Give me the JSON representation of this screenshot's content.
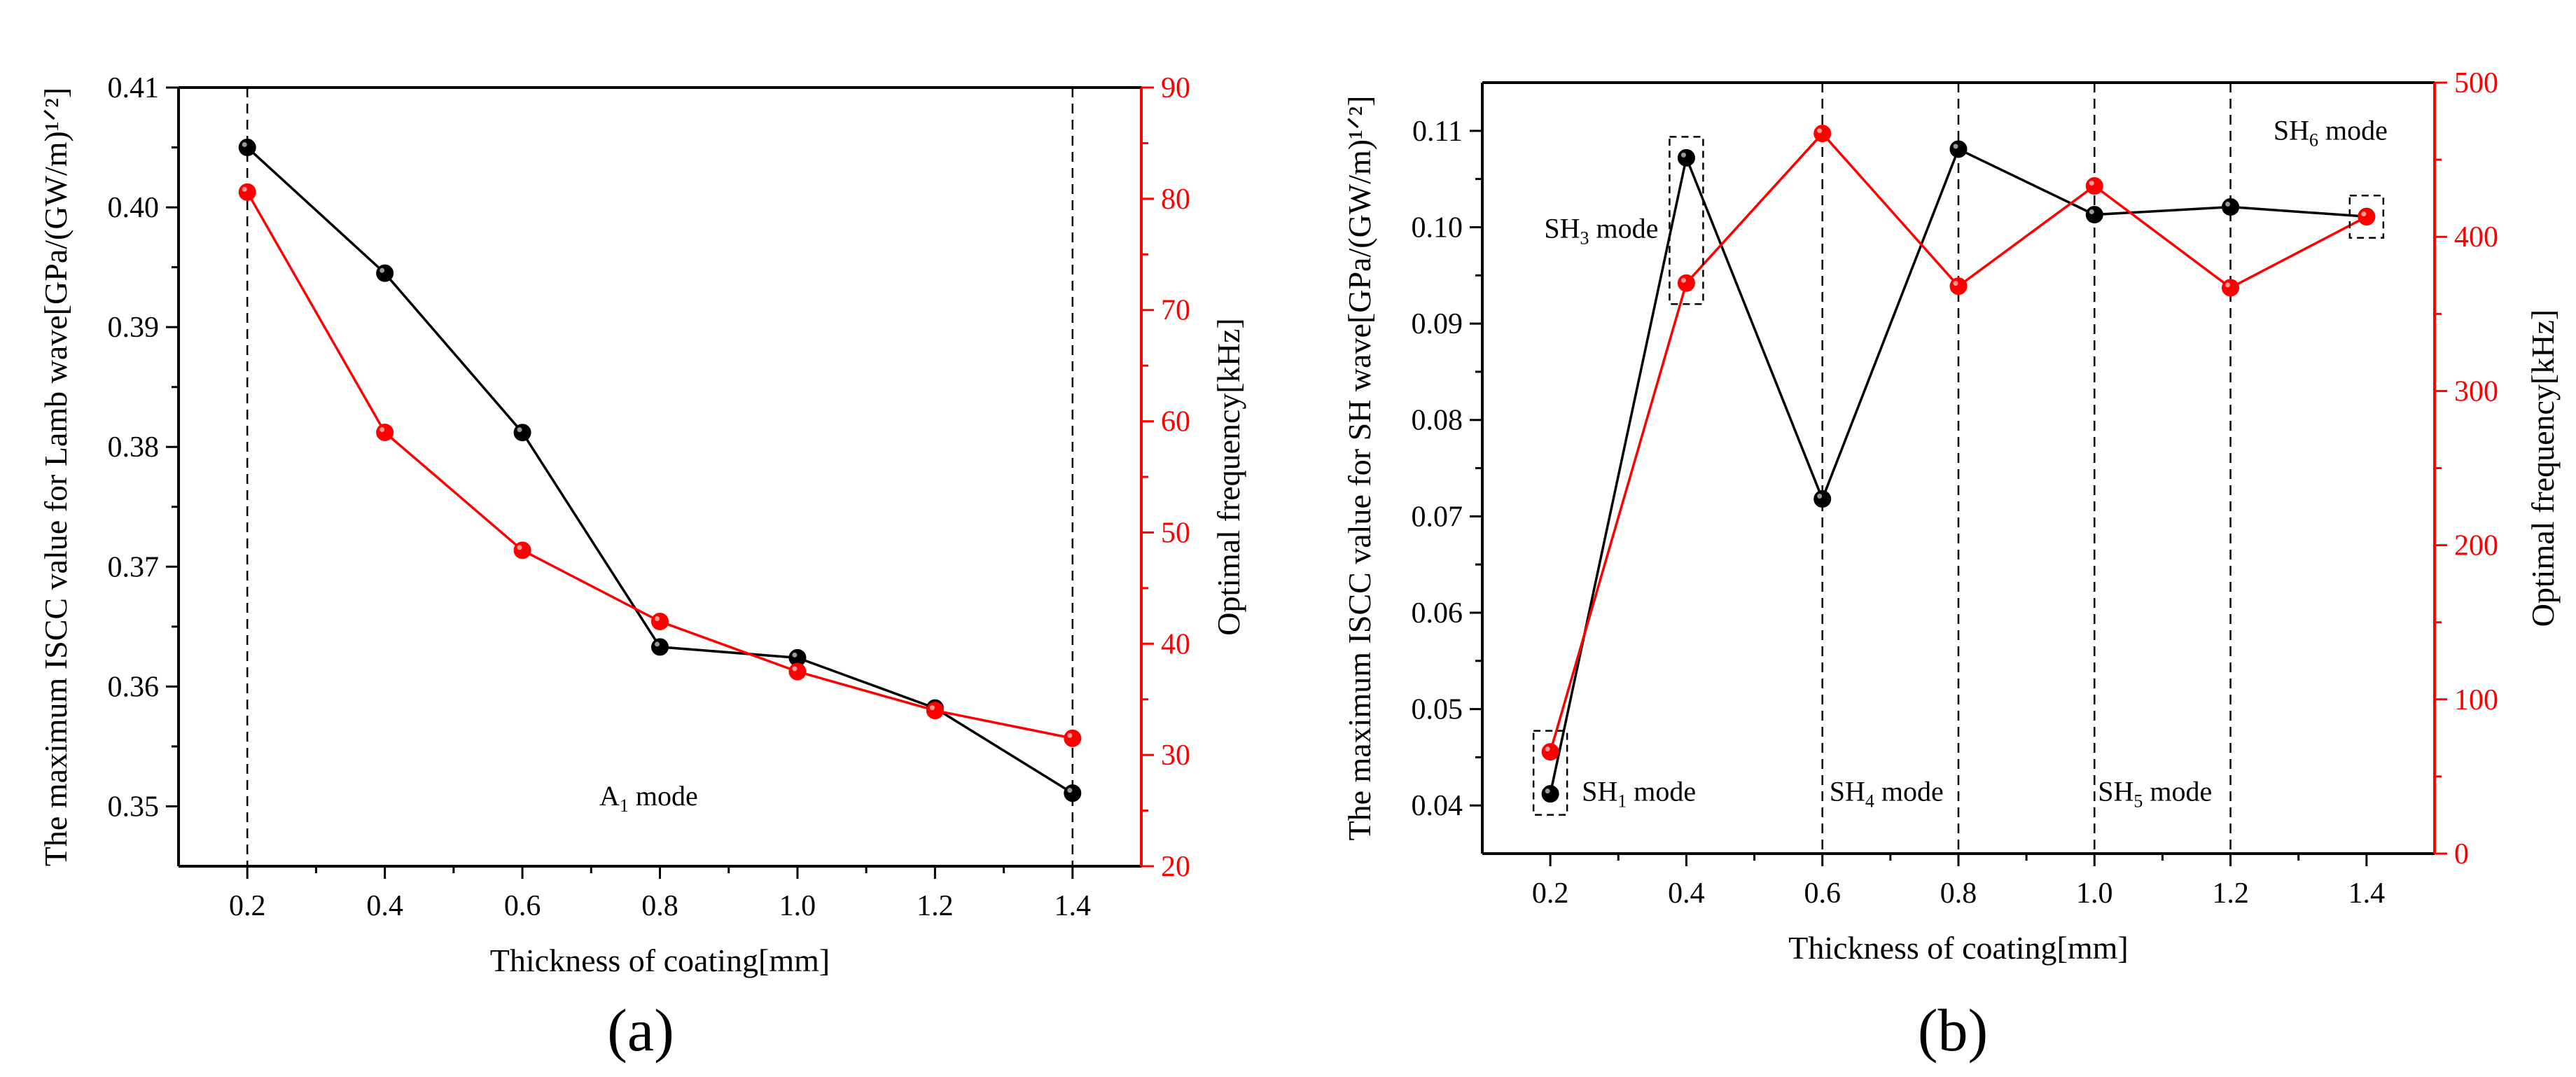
{
  "figure": {
    "panel_a_label": "(a)",
    "panel_b_label": "(b)"
  },
  "colors": {
    "axis": "#000000",
    "left_series": "#000000",
    "right_series": "#ff0000",
    "dashed": "#000000"
  },
  "chart_data": [
    {
      "type": "line",
      "xlabel": "Thickness of coating[mm]",
      "ylabel": "The maximum ISCC value for Lamb wave[GPa/(GW/m)¹ᐟ²]",
      "y2label": "Optimal frequency[kHz]",
      "xlim": [
        0.1,
        1.5
      ],
      "ylim": [
        0.345,
        0.41
      ],
      "y2lim": [
        20,
        90
      ],
      "xticks": [
        "0.2",
        "0.4",
        "0.6",
        "0.8",
        "1.0",
        "1.2",
        "1.4"
      ],
      "yticks": [
        "0.35",
        "0.36",
        "0.37",
        "0.38",
        "0.39",
        "0.40",
        "0.41"
      ],
      "y2ticks": [
        "20",
        "30",
        "40",
        "50",
        "60",
        "70",
        "80",
        "90"
      ],
      "x": [
        0.2,
        0.4,
        0.6,
        0.8,
        1.0,
        1.2,
        1.4
      ],
      "series": [
        {
          "axis": "left",
          "values": [
            0.405,
            0.3945,
            0.3812,
            0.3633,
            0.3624,
            0.3582,
            0.3511
          ]
        },
        {
          "axis": "right",
          "values": [
            80.6,
            59.0,
            48.4,
            42.0,
            37.5,
            34.0,
            31.5
          ]
        }
      ],
      "dashed_x": [
        0.2,
        1.4
      ],
      "annotations": [
        {
          "text": "A",
          "sub": "1",
          "rest": " mode"
        }
      ]
    },
    {
      "type": "line",
      "xlabel": "Thickness of coating[mm]",
      "ylabel": "The maximum ISCC value for SH wave[GPa/(GW/m)¹ᐟ²]",
      "y2label": "Optimal frequency[kHz]",
      "xlim": [
        0.1,
        1.5
      ],
      "ylim": [
        0.035,
        0.115
      ],
      "y2lim": [
        0,
        500
      ],
      "xticks": [
        "0.2",
        "0.4",
        "0.6",
        "0.8",
        "1.0",
        "1.2",
        "1.4"
      ],
      "yticks": [
        "0.04",
        "0.05",
        "0.06",
        "0.07",
        "0.08",
        "0.09",
        "0.10",
        "0.11"
      ],
      "y2ticks": [
        "0",
        "100",
        "200",
        "300",
        "400",
        "500"
      ],
      "x": [
        0.2,
        0.4,
        0.6,
        0.8,
        1.0,
        1.2,
        1.4
      ],
      "series": [
        {
          "axis": "left",
          "values": [
            0.0412,
            0.1072,
            0.0718,
            0.1081,
            0.1013,
            0.1021,
            0.1011
          ]
        },
        {
          "axis": "right",
          "values": [
            66,
            370,
            467,
            368,
            433,
            367,
            413
          ]
        }
      ],
      "dashed_x": [
        0.6,
        0.8,
        1.0,
        1.2
      ],
      "mode_boxes_x": [
        0.2,
        0.4,
        1.4
      ],
      "annotations": [
        {
          "text": "SH",
          "sub": "1",
          "rest": " mode"
        },
        {
          "text": "SH",
          "sub": "3",
          "rest": " mode"
        },
        {
          "text": "SH",
          "sub": "4",
          "rest": " mode"
        },
        {
          "text": "SH",
          "sub": "5",
          "rest": " mode"
        },
        {
          "text": "SH",
          "sub": "6",
          "rest": " mode"
        }
      ]
    }
  ]
}
